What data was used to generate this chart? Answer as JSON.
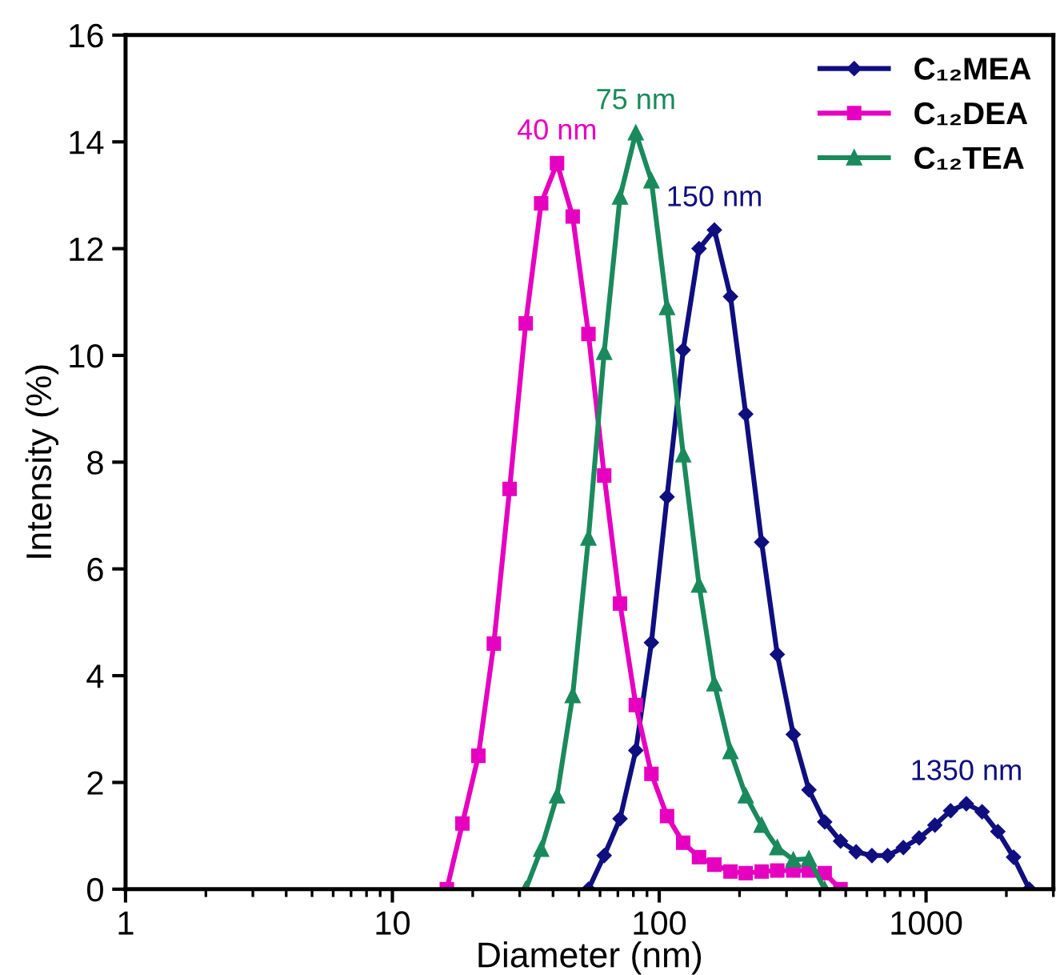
{
  "chart_data": {
    "type": "line",
    "xlabel": "Diameter (nm)",
    "ylabel": "Intensity (%)",
    "log": "x",
    "xlim": [
      1,
      3000
    ],
    "xticks": [
      1,
      10,
      100,
      1000
    ],
    "ylim": [
      0,
      16
    ],
    "yticks": [
      0,
      2,
      4,
      6,
      8,
      10,
      12,
      14,
      16
    ],
    "grid": false,
    "legend": "top right",
    "line_style": "solid",
    "series": [
      {
        "name": "C₁₂MEA",
        "color": "#0f0f80",
        "marker": "diamond",
        "x": [
          54.3,
          62.2,
          71.3,
          81.7,
          93.5,
          107,
          123,
          141,
          161,
          185,
          211,
          242,
          277,
          318,
          364,
          417,
          478,
          547,
          627,
          718,
          822,
          942,
          1079,
          1236,
          1416,
          1622,
          1858,
          2128,
          2438
        ],
        "values": [
          0,
          0.63,
          1.32,
          2.6,
          4.62,
          7.35,
          10.1,
          12.0,
          12.35,
          11.1,
          8.9,
          6.5,
          4.4,
          2.9,
          1.86,
          1.26,
          0.9,
          0.7,
          0.63,
          0.63,
          0.78,
          0.96,
          1.2,
          1.47,
          1.6,
          1.45,
          1.08,
          0.6,
          0
        ]
      },
      {
        "name": "C₁₂DEA",
        "color": "#e600c0",
        "marker": "square",
        "x": [
          16.0,
          18.3,
          21.0,
          24.0,
          27.5,
          31.6,
          36.1,
          41.4,
          47.4,
          54.3,
          62.2,
          71.3,
          81.7,
          93.5,
          107,
          123,
          141,
          161,
          185,
          211,
          242,
          277,
          318,
          364,
          417,
          478
        ],
        "values": [
          0,
          1.23,
          2.5,
          4.6,
          7.5,
          10.6,
          12.85,
          13.6,
          12.6,
          10.4,
          7.75,
          5.35,
          3.45,
          2.16,
          1.37,
          0.87,
          0.6,
          0.46,
          0.33,
          0.3,
          0.33,
          0.35,
          0.35,
          0.35,
          0.3,
          0
        ]
      },
      {
        "name": "C₁₂TEA",
        "color": "#1a8a5c",
        "marker": "triangle",
        "x": [
          31.6,
          36.1,
          41.4,
          47.4,
          54.3,
          62.2,
          71.3,
          81.7,
          93.5,
          107,
          123,
          141,
          161,
          185,
          211,
          242,
          277,
          318,
          364,
          417
        ],
        "values": [
          0,
          0.75,
          1.75,
          3.63,
          6.58,
          10.06,
          12.97,
          14.17,
          13.27,
          10.9,
          8.14,
          5.7,
          3.85,
          2.58,
          1.75,
          1.2,
          0.78,
          0.55,
          0.57,
          0
        ]
      }
    ],
    "annotations": [
      {
        "text": "40 nm",
        "x": 41.4,
        "y": 13.6
      },
      {
        "text": "75 nm",
        "x": 81.7,
        "y": 14.17
      },
      {
        "text": "150 nm",
        "x": 161,
        "y": 12.35
      },
      {
        "text": "1350 nm",
        "x": 1416,
        "y": 1.6
      }
    ]
  }
}
